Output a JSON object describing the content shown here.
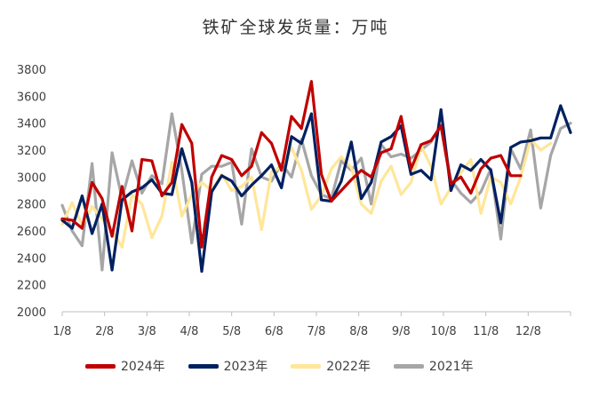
{
  "chart_data": {
    "type": "line",
    "title": "铁矿全球发货量：万吨",
    "xlabel": "",
    "ylabel": "",
    "ylim": [
      2000,
      3800
    ],
    "yticks": [
      2000,
      2200,
      2400,
      2600,
      2800,
      3000,
      3200,
      3400,
      3600,
      3800
    ],
    "xticks": [
      "1/8",
      "2/8",
      "3/8",
      "4/8",
      "5/8",
      "6/8",
      "7/8",
      "8/8",
      "9/8",
      "10/8",
      "11/8",
      "12/8"
    ],
    "legend_position": "bottom",
    "series": [
      {
        "name": "2024年",
        "color": "#c00000",
        "values": [
          2690,
          2680,
          2620,
          2960,
          2840,
          2560,
          2930,
          2600,
          3130,
          3120,
          2860,
          2960,
          3390,
          3250,
          2480,
          3000,
          3160,
          3130,
          3010,
          3080,
          3330,
          3250,
          3050,
          3450,
          3360,
          3710,
          3020,
          2820,
          2900,
          2980,
          3050,
          3000,
          3180,
          3210,
          3450,
          3060,
          3240,
          3270,
          3380,
          2950,
          3000,
          2880,
          3060,
          3140,
          3160,
          3010,
          3010
        ]
      },
      {
        "name": "2023年",
        "color": "#002060",
        "values": [
          2680,
          2620,
          2860,
          2580,
          2800,
          2310,
          2830,
          2890,
          2920,
          2980,
          2880,
          2870,
          3210,
          2960,
          2300,
          2890,
          3010,
          2970,
          2860,
          2940,
          3010,
          3090,
          2920,
          3300,
          3250,
          3470,
          2830,
          2820,
          2970,
          3260,
          2840,
          2960,
          3260,
          3300,
          3380,
          3020,
          3050,
          2980,
          3500,
          2900,
          3090,
          3050,
          3130,
          3050,
          2660,
          3220,
          3260,
          3270,
          3290,
          3290,
          3530,
          3330
        ]
      },
      {
        "name": "2022年",
        "color": "#ffe699",
        "values": [
          2650,
          2810,
          2640,
          2780,
          2690,
          2600,
          2480,
          2870,
          2800,
          2550,
          2710,
          3110,
          2710,
          2870,
          2960,
          2900,
          3020,
          2900,
          2930,
          3000,
          2610,
          3040,
          3070,
          3220,
          3050,
          2760,
          2860,
          3060,
          3150,
          3070,
          2800,
          2730,
          2970,
          3080,
          2870,
          2960,
          3230,
          3080,
          2800,
          2920,
          3030,
          3130,
          2730,
          3000,
          2960,
          2800,
          3000,
          3280,
          3200,
          3250
        ]
      },
      {
        "name": "2021年",
        "color": "#a6a6a6",
        "values": [
          2790,
          2600,
          2490,
          3100,
          2310,
          3180,
          2840,
          3120,
          2880,
          3010,
          2950,
          3470,
          3050,
          2510,
          3020,
          3080,
          3080,
          3110,
          2650,
          3210,
          3000,
          2970,
          3100,
          3000,
          3280,
          3010,
          2870,
          2840,
          3120,
          3050,
          3140,
          2800,
          3240,
          3150,
          3170,
          3140,
          3200,
          3260,
          3380,
          2980,
          2880,
          2810,
          2890,
          3060,
          2540,
          3210,
          3060,
          3350,
          2770,
          3160,
          3360,
          3400
        ]
      }
    ]
  }
}
